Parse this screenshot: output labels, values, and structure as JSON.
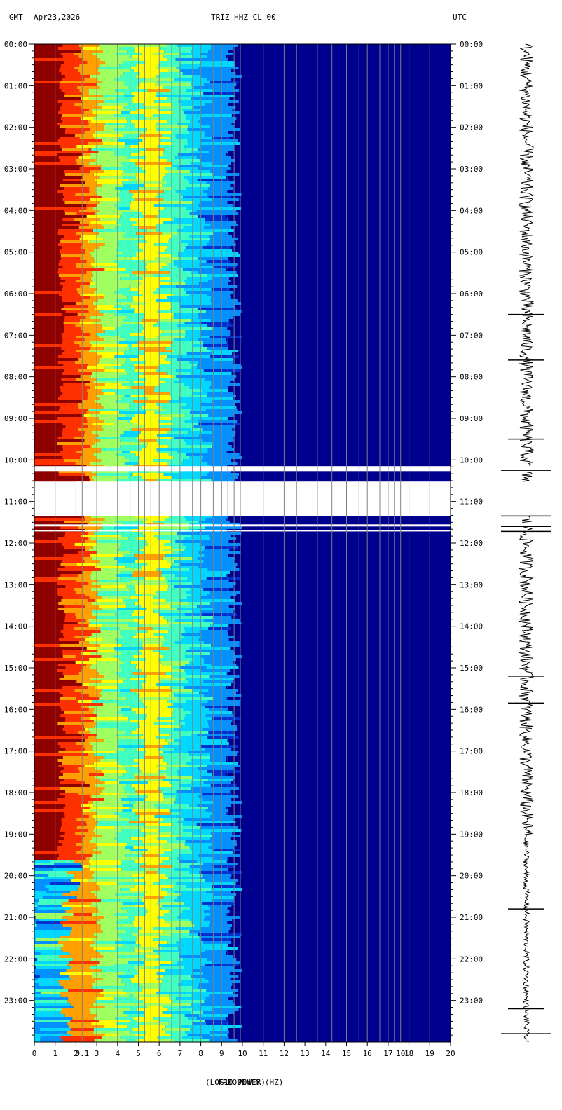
{
  "header": {
    "left_zone": "GMT",
    "date": "Apr23,2026",
    "station": "TRIZ HHZ CL 00",
    "right_zone": "UTC"
  },
  "chart_data": {
    "type": "heatmap",
    "title": "TRIZ HHZ CL 00",
    "xlabel": "FREQUENCY (HZ)",
    "xlabel_overlay": "(LOG10 POWER)",
    "x_range": [
      0,
      20
    ],
    "x_ticks": [
      "0",
      "1",
      "2",
      "3",
      "4",
      "5",
      "6",
      "7",
      "8",
      "9",
      "10",
      "11",
      "12",
      "13",
      "14",
      "15",
      "16",
      "17",
      "18",
      "19",
      "20"
    ],
    "x_tick_overlay": [
      {
        "x": 2.3,
        "label": "0.1"
      },
      {
        "x": 9.9,
        "label": "1"
      },
      {
        "x": 17.6,
        "label": "10"
      }
    ],
    "y_ticks": [
      "00:00",
      "01:00",
      "02:00",
      "03:00",
      "04:00",
      "05:00",
      "06:00",
      "07:00",
      "08:00",
      "09:00",
      "10:00",
      "11:00",
      "12:00",
      "13:00",
      "14:00",
      "15:00",
      "16:00",
      "17:00",
      "18:00",
      "19:00",
      "20:00",
      "21:00",
      "22:00",
      "23:00"
    ],
    "y_range_hours": [
      0,
      24
    ],
    "data_gaps_hours": [
      [
        10.15,
        10.27
      ],
      [
        10.52,
        11.35
      ],
      [
        11.55,
        11.6
      ],
      [
        11.68,
        11.72
      ]
    ],
    "grid_lines_freq": [
      1.0,
      2.0,
      2.3,
      3.0,
      4.0,
      4.6,
      5.0,
      5.3,
      5.6,
      6.0,
      6.6,
      7.0,
      7.6,
      8.0,
      8.3,
      8.6,
      9.0,
      9.3,
      9.6,
      9.9,
      11.0,
      12.0,
      12.6,
      13.6,
      14.3,
      15.0,
      15.6,
      16.0,
      16.6,
      17.0,
      17.3,
      17.6,
      18.0,
      19.0
    ],
    "colormap": [
      "#00008f",
      "#0030d0",
      "#0090ff",
      "#00d8ff",
      "#40ffc0",
      "#a0ff60",
      "#ffff00",
      "#ffa000",
      "#ff3000",
      "#8f0000"
    ]
  }
}
